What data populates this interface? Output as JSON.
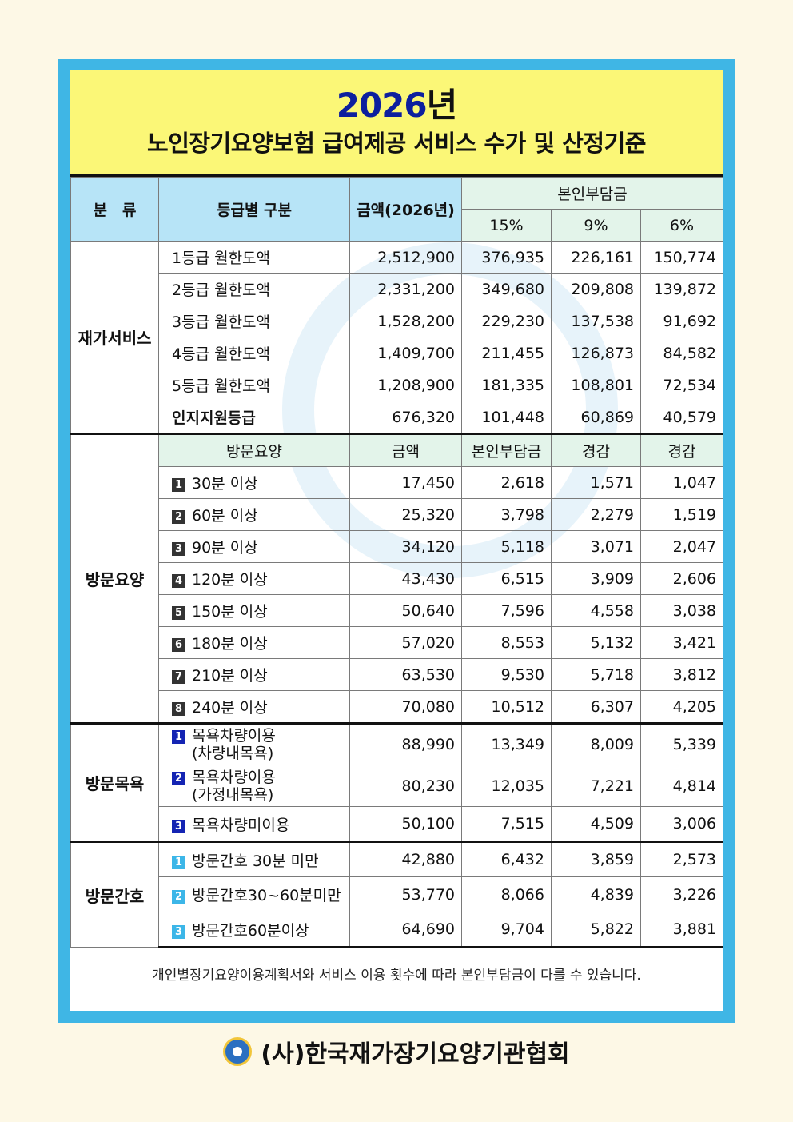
{
  "title": {
    "year": "2026",
    "year_suffix": "년",
    "subtitle": "노인장기요양보험 급여제공 서비스 수가 및 산정기준"
  },
  "header": {
    "category": "분　류",
    "grade": "등급별 구분",
    "amount": "금액(2026년)",
    "copay": "본인부담금",
    "p15": "15%",
    "p9": "9%",
    "p6": "6%"
  },
  "home_service": {
    "category": "재가서비스",
    "rows": [
      {
        "label": "1등급 월한도액",
        "amount": "2,512,900",
        "p15": "376,935",
        "p9": "226,161",
        "p6": "150,774"
      },
      {
        "label": "2등급 월한도액",
        "amount": "2,331,200",
        "p15": "349,680",
        "p9": "209,808",
        "p6": "139,872"
      },
      {
        "label": "3등급 월한도액",
        "amount": "1,528,200",
        "p15": "229,230",
        "p9": "137,538",
        "p6": "91,692"
      },
      {
        "label": "4등급 월한도액",
        "amount": "1,409,700",
        "p15": "211,455",
        "p9": "126,873",
        "p6": "84,582"
      },
      {
        "label": "5등급 월한도액",
        "amount": "1,208,900",
        "p15": "181,335",
        "p9": "108,801",
        "p6": "72,534"
      },
      {
        "label": "인지지원등급",
        "amount": "676,320",
        "p15": "101,448",
        "p9": "60,869",
        "p6": "40,579"
      }
    ]
  },
  "visit_care": {
    "category": "방문요양",
    "sub_header": {
      "label": "방문요양",
      "amount": "금액",
      "copay": "본인부담금",
      "reduced1": "경감",
      "reduced2": "경감"
    },
    "rows": [
      {
        "n": "1",
        "label": "30분 이상",
        "amount": "17,450",
        "p15": "2,618",
        "p9": "1,571",
        "p6": "1,047"
      },
      {
        "n": "2",
        "label": "60분 이상",
        "amount": "25,320",
        "p15": "3,798",
        "p9": "2,279",
        "p6": "1,519"
      },
      {
        "n": "3",
        "label": "90분 이상",
        "amount": "34,120",
        "p15": "5,118",
        "p9": "3,071",
        "p6": "2,047"
      },
      {
        "n": "4",
        "label": "120분 이상",
        "amount": "43,430",
        "p15": "6,515",
        "p9": "3,909",
        "p6": "2,606"
      },
      {
        "n": "5",
        "label": "150분 이상",
        "amount": "50,640",
        "p15": "7,596",
        "p9": "4,558",
        "p6": "3,038"
      },
      {
        "n": "6",
        "label": "180분 이상",
        "amount": "57,020",
        "p15": "8,553",
        "p9": "5,132",
        "p6": "3,421"
      },
      {
        "n": "7",
        "label": "210분 이상",
        "amount": "63,530",
        "p15": "9,530",
        "p9": "5,718",
        "p6": "3,812"
      },
      {
        "n": "8",
        "label": "240분 이상",
        "amount": "70,080",
        "p15": "10,512",
        "p9": "6,307",
        "p6": "4,205"
      }
    ]
  },
  "visit_bath": {
    "category": "방문목욕",
    "rows": [
      {
        "n": "1",
        "label": "목욕차량이용",
        "label2": "(차량내목욕)",
        "amount": "88,990",
        "p15": "13,349",
        "p9": "8,009",
        "p6": "5,339"
      },
      {
        "n": "2",
        "label": "목욕차량이용",
        "label2": "(가정내목욕)",
        "amount": "80,230",
        "p15": "12,035",
        "p9": "7,221",
        "p6": "4,814"
      },
      {
        "n": "3",
        "label": "목욕차량미이용",
        "label2": "",
        "amount": "50,100",
        "p15": "7,515",
        "p9": "4,509",
        "p6": "3,006"
      }
    ]
  },
  "visit_nursing": {
    "category": "방문간호",
    "rows": [
      {
        "n": "1",
        "label": "방문간호 30분 미만",
        "amount": "42,880",
        "p15": "6,432",
        "p9": "3,859",
        "p6": "2,573"
      },
      {
        "n": "2",
        "label": "방문간호30~60분미만",
        "amount": "53,770",
        "p15": "8,066",
        "p9": "4,839",
        "p6": "3,226"
      },
      {
        "n": "3",
        "label": "방문간호60분이상",
        "amount": "64,690",
        "p15": "9,704",
        "p9": "5,822",
        "p6": "3,881"
      }
    ]
  },
  "note": "개인별장기요양이용계획서와 서비스 이용 횟수에 따라 본인부담금이 다를 수 있습니다.",
  "footer": {
    "org": "(사)한국재가장기요양기관협회",
    "logo_icon": "association-logo-icon"
  }
}
